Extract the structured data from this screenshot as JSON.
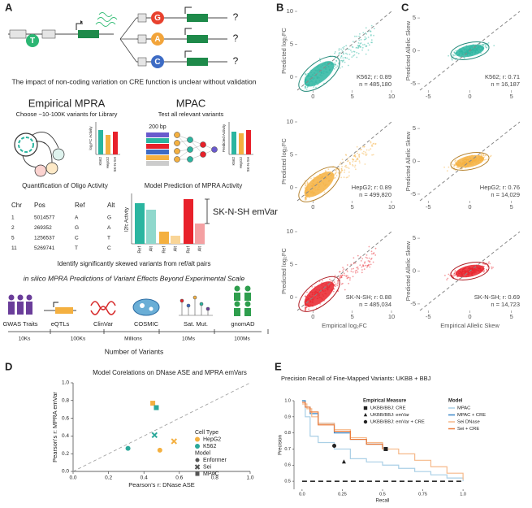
{
  "panel_labels": [
    "A",
    "B",
    "C",
    "D",
    "E"
  ],
  "panel_a": {
    "bases": [
      "T",
      "G",
      "A",
      "C"
    ],
    "question": "?",
    "intro": "The impact of non-coding variation on CRE function is unclear without validation",
    "empirical": {
      "title": "Empirical MPRA",
      "subtitle": "Choose ~10-100K variants for Library",
      "ylabel": "log₂FC Activity",
      "cells": [
        "K562",
        "HepG2",
        "SK-N-SH"
      ],
      "caption": "Quantification of Oligo Activity"
    },
    "mpac": {
      "title": "MPAC",
      "subtitle": "Test all relevant variants",
      "length": "200 bp",
      "ylabel": "Predicted Activity",
      "cells": [
        "K562",
        "HepG2",
        "SK-N-SH"
      ],
      "caption": "Model Prediction of MPRA Activity"
    },
    "table": {
      "header": [
        "Chr",
        "Pos",
        "Ref",
        "Alt"
      ],
      "rows": [
        [
          "1",
          "5014577",
          "A",
          "G"
        ],
        [
          "2",
          "269352",
          "G",
          "A"
        ],
        [
          "5",
          "1256537",
          "C",
          "T"
        ],
        [
          "11",
          "5269741",
          "T",
          "C"
        ]
      ]
    },
    "skew": {
      "ylabel": "l2fc Activity",
      "allele_labels": [
        "Ref",
        "Alt",
        "Ref",
        "Alt",
        "Ref",
        "Alt"
      ],
      "emvar": "SK-N-SH emVar",
      "caption": "Identify significantly skewed variants from ref/alt pairs"
    },
    "scale": {
      "title": "in silico MPRA Predictions of Variant Effects Beyond Experimental Scale",
      "sources": [
        "GWAS Traits",
        "eQTLs",
        "ClinVar",
        "COSMIC",
        "Sat. Mut.",
        "gnomAD"
      ],
      "ticks": [
        "10Ks",
        "100Ks",
        "Millions",
        "10Ms",
        "100Ms"
      ],
      "xlabel": "Number of Variants"
    }
  },
  "panel_b": {
    "xlabel": "Empirical log₂FC",
    "ylabel": "Predicted log₂FC",
    "xlim": [
      -2,
      10
    ],
    "ylim": [
      -2,
      10
    ],
    "xticks": [
      0,
      5,
      10
    ],
    "yticks": [
      0,
      5,
      10
    ],
    "plots": [
      {
        "color": "#2bb5a0",
        "stat": "K562; r: 0.89",
        "n": "n = 485,180"
      },
      {
        "color": "#f4b040",
        "stat": "HepG2; r: 0.89",
        "n": "n = 499,820"
      },
      {
        "color": "#e8212a",
        "stat": "SK-N-SH; r: 0.88",
        "n": "n = 485,034"
      }
    ]
  },
  "panel_c": {
    "xlabel": "Empirical Allelic Skew",
    "ylabel": "Predicted Allelic Skew",
    "xlim": [
      -6,
      6
    ],
    "ylim": [
      -6,
      6
    ],
    "xticks": [
      -5,
      0,
      5
    ],
    "yticks": [
      -5,
      0,
      5
    ],
    "plots": [
      {
        "color": "#2bb5a0",
        "stat": "K562; r: 0.71",
        "n": "n = 16,187"
      },
      {
        "color": "#f4b040",
        "stat": "HepG2; r: 0.76",
        "n": "n = 14,029"
      },
      {
        "color": "#e8212a",
        "stat": "SK-N-SH; r: 0.69",
        "n": "n = 14,723"
      }
    ]
  },
  "chart_data": [
    {
      "type": "scatter",
      "title": "Model Corelations on DNase ASE and MPRA emVars",
      "xlabel": "Pearson's r: DNase ASE",
      "ylabel": "Pearson's r: MPRA emVar",
      "xlim": [
        0,
        1
      ],
      "ylim": [
        0,
        1
      ],
      "xticks": [
        {
          "value": 0,
          "label": "0.0"
        },
        {
          "value": 0.2,
          "label": "0.2"
        },
        {
          "value": 0.4,
          "label": "0.4"
        },
        {
          "value": 0.6,
          "label": "0.6"
        },
        {
          "value": 0.8,
          "label": "0.8"
        },
        {
          "value": 1,
          "label": "1.0"
        }
      ],
      "yticks": [
        {
          "value": 0,
          "label": "0.0"
        },
        {
          "value": 0.2,
          "label": "0.2"
        },
        {
          "value": 0.4,
          "label": "0.4"
        },
        {
          "value": 0.6,
          "label": "0.6"
        },
        {
          "value": 0.8,
          "label": "0.8"
        },
        {
          "value": 1,
          "label": "1.0"
        }
      ],
      "legend_titles": [
        "Cell Type",
        "Model"
      ],
      "models": [
        "Enformer",
        "Sei",
        "MPAC"
      ],
      "markers": [
        "circle",
        "cross",
        "square"
      ],
      "series": [
        {
          "name": "HepG2",
          "color": "#f4b040",
          "x": [
            0.49,
            0.57,
            0.45
          ],
          "values": [
            0.24,
            0.34,
            0.77
          ]
        },
        {
          "name": "K562",
          "color": "#2ba89a",
          "x": [
            0.31,
            0.46,
            0.47
          ],
          "values": [
            0.26,
            0.41,
            0.72
          ]
        }
      ]
    },
    {
      "type": "line",
      "title": "Precision Recall of Fine-Mapped Variants: UKBB + BBJ",
      "xlabel": "Recall",
      "ylabel": "Precision",
      "xlim": [
        -0.05,
        1.05
      ],
      "ylim": [
        0.45,
        1.0
      ],
      "xticks": [
        {
          "value": 0,
          "label": "0.0"
        },
        0.25,
        0.5,
        0.75,
        {
          "value": 1,
          "label": "1.0"
        }
      ],
      "yticks": [
        0.5,
        0.6,
        0.7,
        0.8,
        0.9,
        {
          "value": 1,
          "label": "1.0"
        }
      ],
      "baseline": 0.5,
      "legend_title": "Model",
      "series": [
        {
          "name": "MPAC",
          "color": "#a9cfe6",
          "x": [
            0,
            0.02,
            0.05,
            0.1,
            0.2,
            0.3,
            0.4,
            0.5,
            0.6,
            0.7,
            0.8,
            0.9,
            1.0
          ],
          "values": [
            1.0,
            0.9,
            0.78,
            0.74,
            0.7,
            0.64,
            0.62,
            0.6,
            0.58,
            0.56,
            0.54,
            0.52,
            0.5
          ]
        },
        {
          "name": "MPAC + CRE",
          "color": "#3a87c8",
          "x": [
            0,
            0.02,
            0.05,
            0.1,
            0.2,
            0.3,
            0.4,
            0.5
          ],
          "values": [
            1.0,
            0.96,
            0.92,
            0.86,
            0.8,
            0.76,
            0.73,
            0.7
          ]
        },
        {
          "name": "Sei DNase",
          "color": "#f6b98a",
          "x": [
            0,
            0.03,
            0.06,
            0.1,
            0.2,
            0.3,
            0.4,
            0.5,
            0.6,
            0.7,
            0.8,
            0.9,
            1.0
          ],
          "values": [
            0.98,
            0.95,
            0.9,
            0.86,
            0.82,
            0.77,
            0.74,
            0.7,
            0.67,
            0.63,
            0.59,
            0.55,
            0.51
          ]
        },
        {
          "name": "Sei + CRE",
          "color": "#ec7b3a",
          "x": [
            0,
            0.02,
            0.05,
            0.1,
            0.2,
            0.3,
            0.4,
            0.5
          ],
          "values": [
            0.99,
            0.96,
            0.93,
            0.85,
            0.81,
            0.76,
            0.73,
            0.7
          ]
        }
      ],
      "points": {
        "title": "Empirical Measure",
        "names": [
          "UKBB/BBJ: CRE",
          "UKBB/BBJ: emVar",
          "UKBB/BBJ: emVar + CRE"
        ],
        "markers": [
          "square",
          "triangle",
          "circle"
        ],
        "x": [
          0.52,
          0.26,
          0.2
        ],
        "values": [
          0.7,
          0.62,
          0.72
        ]
      }
    }
  ]
}
